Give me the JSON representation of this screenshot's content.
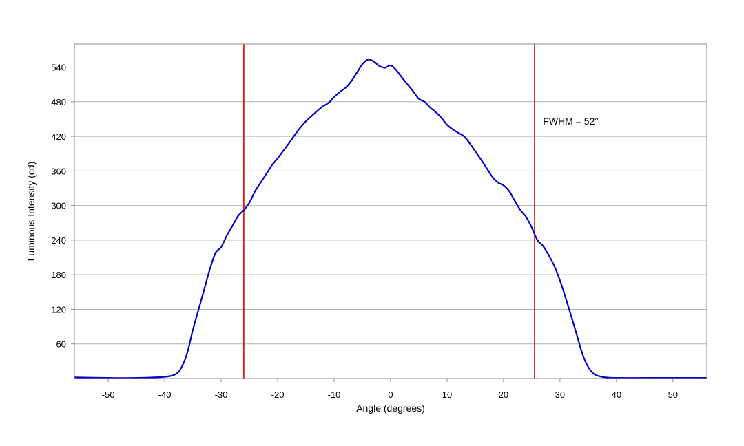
{
  "chart_data": {
    "type": "line",
    "title": "",
    "xlabel": "Angle (degrees)",
    "ylabel": "Luminous Intensity (cd)",
    "xlim": [
      -56,
      56
    ],
    "ylim": [
      0,
      580
    ],
    "xticks": [
      -50,
      -40,
      -30,
      -20,
      -10,
      0,
      10,
      20,
      30,
      40,
      50
    ],
    "yticks": [
      60,
      120,
      180,
      240,
      300,
      360,
      420,
      480,
      540
    ],
    "grid": "horizontal",
    "legend": "none",
    "series": [
      {
        "color": "#0000cc",
        "x": [
          -56,
          -50,
          -45,
          -40,
          -38,
          -37,
          -36,
          -35,
          -34,
          -33,
          -32,
          -31,
          -30,
          -29,
          -28,
          -27,
          -26,
          -25,
          -24,
          -23,
          -22,
          -21,
          -20,
          -19,
          -18,
          -17,
          -16,
          -15,
          -14,
          -13,
          -12,
          -11,
          -10,
          -9,
          -8,
          -7,
          -6,
          -5,
          -4,
          -3,
          -2,
          -1,
          0,
          1,
          2,
          3,
          4,
          5,
          6,
          7,
          8,
          9,
          10,
          11,
          12,
          13,
          14,
          15,
          16,
          17,
          18,
          19,
          20,
          21,
          22,
          23,
          24,
          25,
          26,
          27,
          28,
          29,
          30,
          31,
          32,
          33,
          34,
          35,
          36,
          37,
          38,
          40,
          45,
          50,
          56
        ],
        "y": [
          2,
          1,
          1,
          3,
          8,
          20,
          45,
          85,
          120,
          155,
          190,
          218,
          228,
          248,
          265,
          282,
          292,
          305,
          325,
          340,
          355,
          370,
          382,
          395,
          408,
          422,
          435,
          446,
          455,
          464,
          472,
          478,
          488,
          497,
          504,
          515,
          530,
          545,
          553,
          550,
          542,
          539,
          543,
          535,
          522,
          510,
          498,
          485,
          480,
          470,
          462,
          452,
          440,
          432,
          426,
          420,
          408,
          394,
          380,
          365,
          350,
          340,
          335,
          325,
          308,
          292,
          280,
          262,
          240,
          230,
          214,
          195,
          170,
          140,
          108,
          75,
          42,
          20,
          8,
          4,
          2,
          1,
          1,
          1,
          1
        ]
      }
    ],
    "vlines": [
      {
        "x": -26,
        "color": "#dd0000"
      },
      {
        "x": 25.5,
        "color": "#dd0000"
      }
    ],
    "annotations": [
      {
        "text": "FWHM = 52°",
        "x": 27,
        "y": 450
      }
    ]
  }
}
